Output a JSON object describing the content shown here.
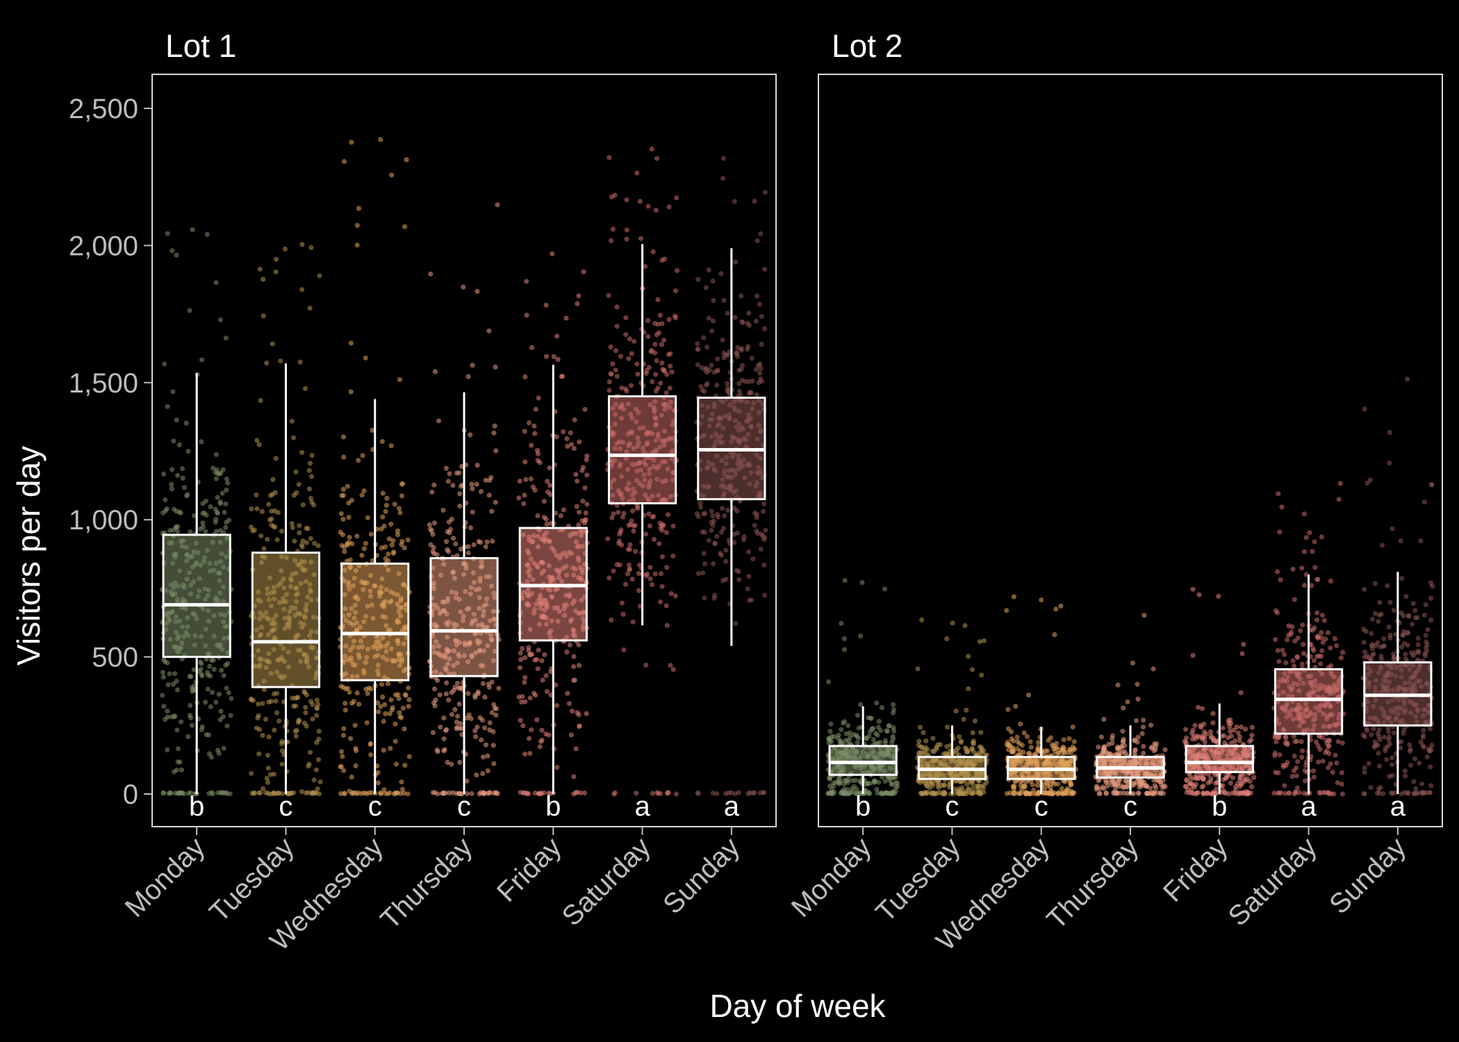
{
  "chart_data": {
    "type": "box",
    "xlabel": "Day of week",
    "ylabel": "Visitors per day",
    "ylim": [
      -120,
      2620
    ],
    "yticks": [
      0,
      500,
      1000,
      1500,
      2000,
      2500
    ],
    "ytick_labels": [
      "0",
      "500",
      "1,000",
      "1,500",
      "2,000",
      "2,500"
    ],
    "categories": [
      "Monday",
      "Tuesday",
      "Wednesday",
      "Thursday",
      "Friday",
      "Saturday",
      "Sunday"
    ],
    "colors": [
      "#7a8c66",
      "#b0904a",
      "#e0a05a",
      "#e69a7e",
      "#e07f76",
      "#c96b68",
      "#8a5350"
    ],
    "grid": false,
    "legend": "none",
    "panels": [
      {
        "title": "Lot 1",
        "boxes": [
          {
            "day": "Monday",
            "min": 0,
            "q1": 500,
            "median": 690,
            "q3": 945,
            "max": 1535,
            "letter": "b"
          },
          {
            "day": "Tuesday",
            "min": 0,
            "q1": 390,
            "median": 555,
            "q3": 880,
            "max": 1570,
            "letter": "c"
          },
          {
            "day": "Wednesday",
            "min": 0,
            "q1": 415,
            "median": 585,
            "q3": 840,
            "max": 1440,
            "letter": "c"
          },
          {
            "day": "Thursday",
            "min": 0,
            "q1": 430,
            "median": 595,
            "q3": 860,
            "max": 1465,
            "letter": "c"
          },
          {
            "day": "Friday",
            "min": 0,
            "q1": 560,
            "median": 760,
            "q3": 970,
            "max": 1565,
            "letter": "b"
          },
          {
            "day": "Saturday",
            "min": 615,
            "q1": 1060,
            "median": 1235,
            "q3": 1450,
            "max": 2005,
            "letter": "a"
          },
          {
            "day": "Sunday",
            "min": 540,
            "q1": 1075,
            "median": 1255,
            "q3": 1445,
            "max": 1990,
            "letter": "a"
          }
        ],
        "points_range": [
          [
            0,
            2100
          ],
          [
            0,
            2010
          ],
          [
            0,
            2400
          ],
          [
            0,
            2150
          ],
          [
            0,
            2010
          ],
          [
            0,
            2420
          ],
          [
            0,
            2490
          ]
        ]
      },
      {
        "title": "Lot 2",
        "boxes": [
          {
            "day": "Monday",
            "min": 0,
            "q1": 70,
            "median": 115,
            "q3": 175,
            "max": 320,
            "letter": "b"
          },
          {
            "day": "Tuesday",
            "min": 0,
            "q1": 55,
            "median": 90,
            "q3": 135,
            "max": 250,
            "letter": "c"
          },
          {
            "day": "Wednesday",
            "min": 0,
            "q1": 55,
            "median": 90,
            "q3": 135,
            "max": 245,
            "letter": "c"
          },
          {
            "day": "Thursday",
            "min": 0,
            "q1": 60,
            "median": 95,
            "q3": 135,
            "max": 250,
            "letter": "c"
          },
          {
            "day": "Friday",
            "min": 0,
            "q1": 80,
            "median": 115,
            "q3": 175,
            "max": 330,
            "letter": "b"
          },
          {
            "day": "Saturday",
            "min": 0,
            "q1": 220,
            "median": 345,
            "q3": 455,
            "max": 800,
            "letter": "a"
          },
          {
            "day": "Sunday",
            "min": 0,
            "q1": 250,
            "median": 360,
            "q3": 480,
            "max": 810,
            "letter": "a"
          }
        ],
        "points_range": [
          [
            0,
            860
          ],
          [
            0,
            680
          ],
          [
            0,
            720
          ],
          [
            0,
            680
          ],
          [
            0,
            760
          ],
          [
            0,
            1160
          ],
          [
            0,
            1590
          ]
        ]
      }
    ]
  }
}
